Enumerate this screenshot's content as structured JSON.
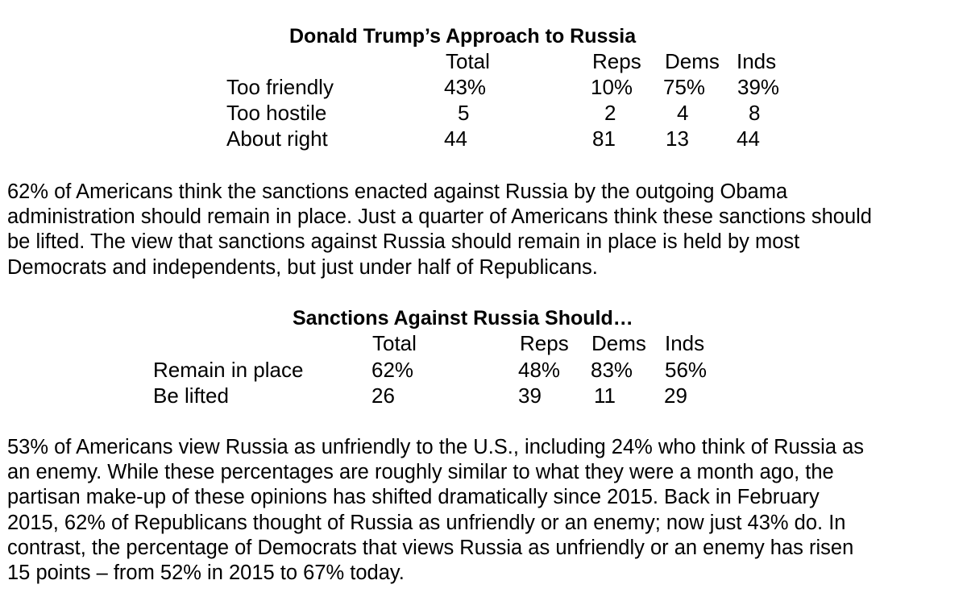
{
  "table1": {
    "title": "Donald Trump’s Approach to Russia",
    "headers": {
      "total": "Total",
      "reps": "Reps",
      "dems": "Dems",
      "inds": "Inds"
    },
    "rows": [
      {
        "label": "Too friendly",
        "total": "43%",
        "reps": "10%",
        "dems": "75%",
        "inds": "39%"
      },
      {
        "label": "Too hostile",
        "total": "5",
        "reps": "2",
        "dems": "4",
        "inds": "8"
      },
      {
        "label": "About right",
        "total": "44",
        "reps": "81",
        "dems": "13",
        "inds": "44"
      }
    ]
  },
  "paragraph1": {
    "lines": [
      "62% of Americans think the sanctions enacted against Russia by the outgoing Obama",
      "administration should remain in place.  Just a quarter of Americans think these sanctions should",
      "be lifted.  The view that sanctions against Russia should remain in place is held by most",
      "Democrats and independents, but just under half of Republicans."
    ]
  },
  "table2": {
    "title": "Sanctions Against Russia Should…",
    "headers": {
      "total": "Total",
      "reps": "Reps",
      "dems": "Dems",
      "inds": "Inds"
    },
    "rows": [
      {
        "label": "Remain in place",
        "total": "62%",
        "reps": "48%",
        "dems": "83%",
        "inds": "56%"
      },
      {
        "label": "Be lifted",
        "total": "26",
        "reps": "39",
        "dems": "11",
        "inds": "29"
      }
    ]
  },
  "paragraph2": {
    "lines": [
      "53% of Americans view Russia as unfriendly to the U.S., including 24% who think of Russia as",
      "an enemy.  While these percentages are roughly similar to what they were a month ago, the",
      "partisan make-up of these opinions has shifted dramatically since 2015.  Back in February",
      "2015, 62% of Republicans thought of Russia as unfriendly or an enemy; now just 43% do.  In",
      "contrast, the percentage of Democrats that views Russia as unfriendly or an enemy has risen",
      "15 points – from 52% in 2015 to 67% today."
    ]
  }
}
